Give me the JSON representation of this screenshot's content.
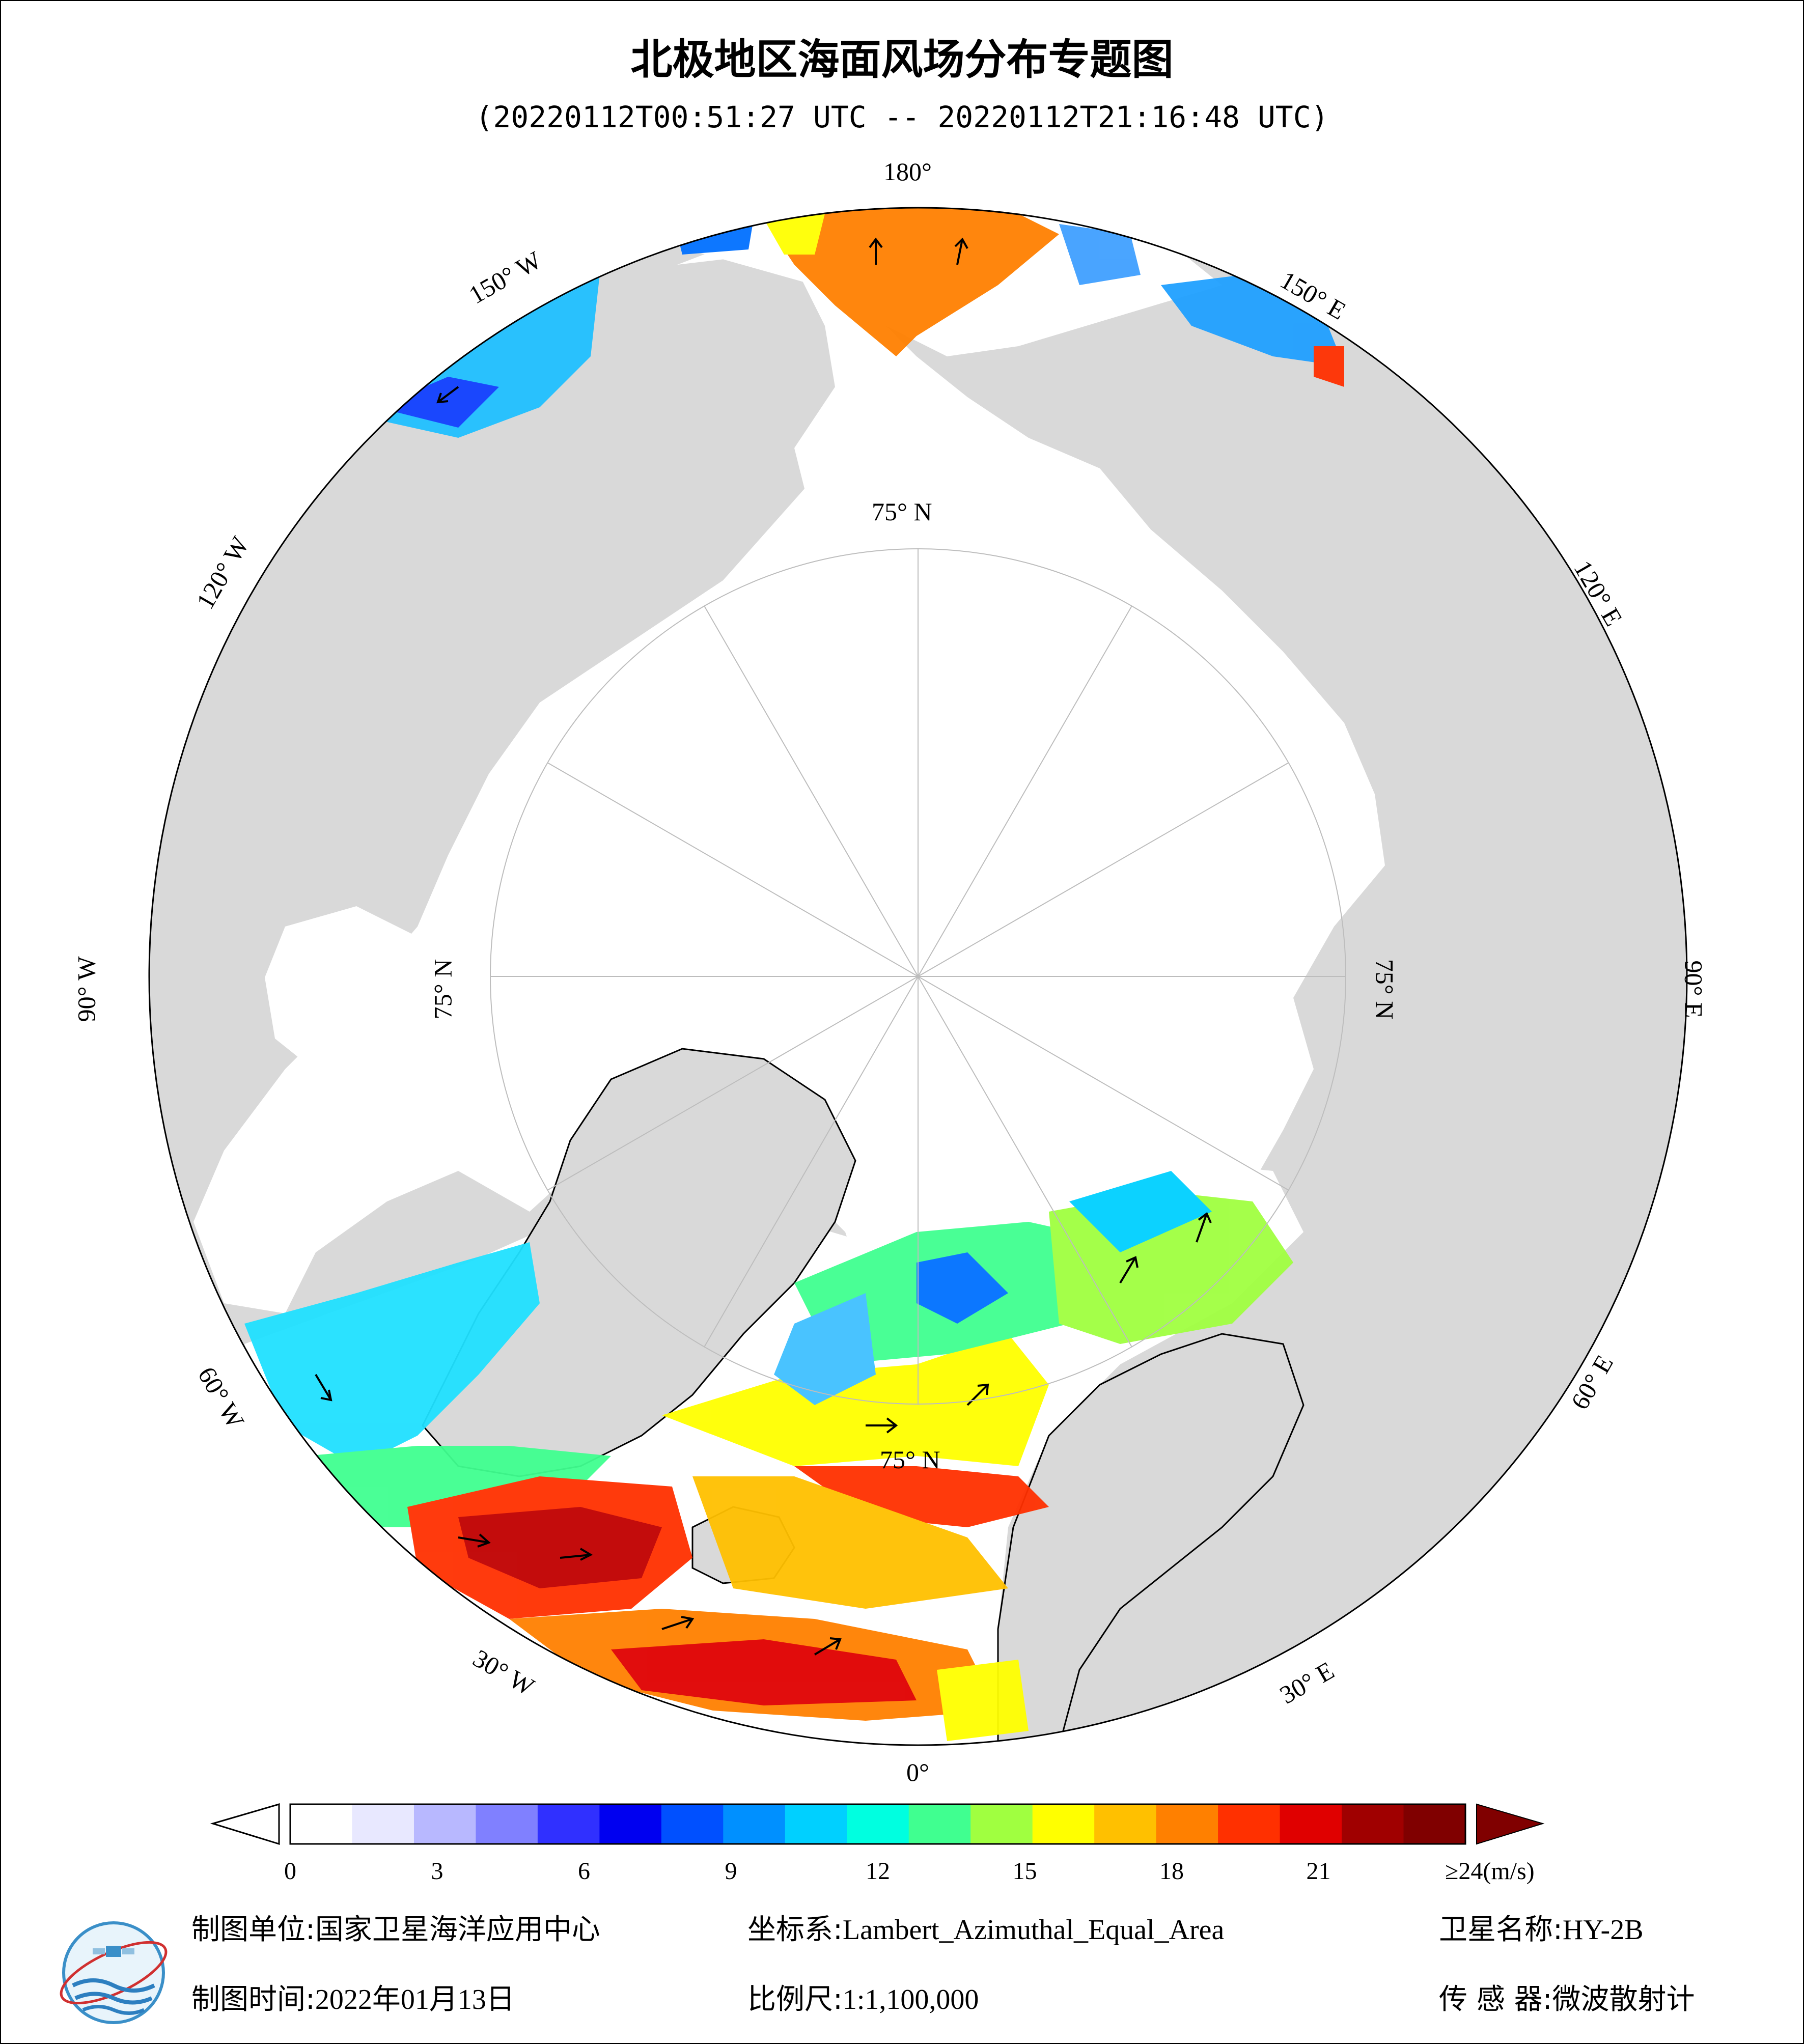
{
  "title": "北极地区海面风场分布专题图",
  "subtitle": "(20220112T00:51:27 UTC -- 20220112T21:16:48 UTC)",
  "map": {
    "projection": "Lambert_Azimuthal_Equal_Area",
    "center": "North Pole",
    "graticule_labels": {
      "lon_180": "180°",
      "lon_0": "0°",
      "lon_150w": "150° W",
      "lon_120w": "120° W",
      "lon_90w": "90° W",
      "lon_60w": "60° W",
      "lon_30w": "30° W",
      "lon_150e": "150° E",
      "lon_120e": "120° E",
      "lon_90e": "90° E",
      "lon_60e": "60° E",
      "lon_30e": "30° E",
      "lat_top": "75° N",
      "lat_left": "75° N",
      "lat_right": "75° N",
      "lat_bottom": "75° N"
    },
    "colors": {
      "land": "#d9d9d9",
      "ocean_ice": "#ffffff",
      "graticule": "#bdbdbd",
      "arrow": "#000000"
    }
  },
  "colorbar": {
    "ticks": [
      "0",
      "3",
      "6",
      "9",
      "12",
      "15",
      "18",
      "21",
      "≥24(m/s)"
    ],
    "tick_values": [
      0,
      3,
      6,
      9,
      12,
      15,
      18,
      21,
      24
    ],
    "unit": "m/s",
    "colors": [
      "#ffffff",
      "#e8e8ff",
      "#b8b8ff",
      "#8080ff",
      "#3030ff",
      "#0000f0",
      "#0050ff",
      "#0090ff",
      "#00d0ff",
      "#00ffe0",
      "#40ff90",
      "#a0ff40",
      "#ffff00",
      "#ffc000",
      "#ff8000",
      "#ff3000",
      "#e00000",
      "#a00000",
      "#800000"
    ],
    "under_color": "#ffffff",
    "over_color": "#800000"
  },
  "footer": {
    "unit_label": "制图单位:",
    "unit_value": "国家卫星海洋应用中心",
    "crs_label": "坐标系:",
    "crs_value": "Lambert_Azimuthal_Equal_Area",
    "sat_label": "卫星名称:",
    "sat_value": "HY-2B",
    "date_label": "制图时间:",
    "date_value": "2022年01月13日",
    "scale_label": "比例尺:",
    "scale_value": "1:1,100,000",
    "sensor_label": "传 感 器:",
    "sensor_value": "微波散射计"
  },
  "icons": {
    "logo": "nsoas-logo-icon"
  }
}
